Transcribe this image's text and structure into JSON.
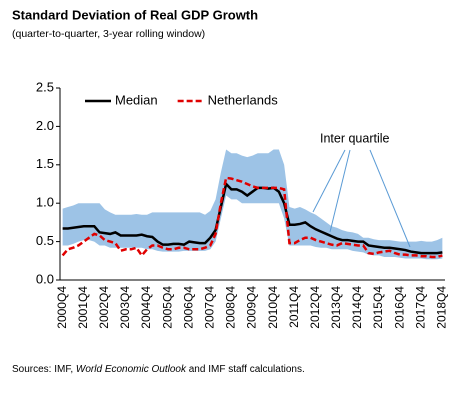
{
  "chart_data": {
    "type": "line",
    "title": "Standard Deviation of Real GDP Growth",
    "subtitle": "(quarter-to-quarter, 3-year rolling window)",
    "source": {
      "prefix": "Sources: IMF,",
      "italic": "World Economic Outlook",
      "suffix": "and IMF staff calculations."
    },
    "annotation": "Inter quartile",
    "legend": "upper left",
    "categories": [
      "2000Q4",
      null,
      null,
      null,
      "2001Q4",
      null,
      null,
      null,
      "2002Q4",
      null,
      null,
      null,
      "2003Q4",
      null,
      null,
      null,
      "2004Q4",
      null,
      null,
      null,
      "2005Q4",
      null,
      null,
      null,
      "2006Q4",
      null,
      null,
      null,
      "2007Q4",
      null,
      null,
      null,
      "2008Q4",
      null,
      null,
      null,
      "2009Q4",
      null,
      null,
      null,
      "2010Q4",
      null,
      null,
      null,
      "2011Q4",
      null,
      null,
      null,
      "2012Q4",
      null,
      null,
      null,
      "2013Q4",
      null,
      null,
      null,
      "2014Q4",
      null,
      null,
      null,
      "2015Q4",
      null,
      null,
      null,
      "2016Q4",
      null,
      null,
      null,
      "2017Q4",
      null,
      null,
      null,
      "2018Q4"
    ],
    "ylim": [
      0,
      2.5
    ],
    "yticks": [
      {
        "value": 0,
        "label": "0.0"
      },
      0.5,
      {
        "value": 1,
        "label": "1.0"
      },
      1.5,
      {
        "value": 2,
        "label": "2.0"
      },
      2.5
    ],
    "band": {
      "color": "#9dc3e6",
      "upper": [
        0.93,
        0.95,
        0.97,
        1.0,
        1.0,
        1.0,
        1.0,
        1.0,
        0.92,
        0.88,
        0.85,
        0.85,
        0.85,
        0.85,
        0.86,
        0.85,
        0.85,
        0.88,
        0.88,
        0.88,
        0.88,
        0.88,
        0.88,
        0.88,
        0.88,
        0.88,
        0.88,
        0.85,
        0.9,
        1.05,
        1.4,
        1.7,
        1.65,
        1.65,
        1.62,
        1.6,
        1.62,
        1.65,
        1.65,
        1.65,
        1.7,
        1.7,
        1.5,
        0.95,
        0.93,
        0.95,
        0.92,
        0.88,
        0.85,
        0.8,
        0.75,
        0.7,
        0.68,
        0.65,
        0.63,
        0.62,
        0.6,
        0.55,
        0.55,
        0.53,
        0.52,
        0.52,
        0.52,
        0.51,
        0.5,
        0.5,
        0.5,
        0.5,
        0.51,
        0.5,
        0.5,
        0.52,
        0.55
      ],
      "lower": [
        0.45,
        0.45,
        0.47,
        0.5,
        0.52,
        0.52,
        0.5,
        0.45,
        0.45,
        0.42,
        0.42,
        0.42,
        0.42,
        0.42,
        0.42,
        0.42,
        0.4,
        0.4,
        0.38,
        0.37,
        0.37,
        0.37,
        0.37,
        0.38,
        0.38,
        0.38,
        0.38,
        0.38,
        0.4,
        0.5,
        0.8,
        1.1,
        1.05,
        1.05,
        1.0,
        1.0,
        1.0,
        1.0,
        1.0,
        1.0,
        1.0,
        1.0,
        0.8,
        0.45,
        0.45,
        0.45,
        0.45,
        0.45,
        0.43,
        0.42,
        0.42,
        0.4,
        0.4,
        0.4,
        0.4,
        0.38,
        0.37,
        0.36,
        0.33,
        0.32,
        0.32,
        0.3,
        0.3,
        0.3,
        0.29,
        0.28,
        0.28,
        0.28,
        0.28,
        0.27,
        0.27,
        0.27,
        0.28
      ]
    },
    "series": [
      {
        "name": "Median",
        "color": "#000000",
        "dashed": false,
        "values": [
          0.67,
          0.67,
          0.68,
          0.69,
          0.7,
          0.7,
          0.7,
          0.62,
          0.61,
          0.6,
          0.62,
          0.58,
          0.58,
          0.58,
          0.58,
          0.59,
          0.57,
          0.56,
          0.5,
          0.46,
          0.46,
          0.47,
          0.47,
          0.46,
          0.5,
          0.49,
          0.48,
          0.48,
          0.55,
          0.65,
          0.95,
          1.25,
          1.18,
          1.18,
          1.15,
          1.1,
          1.15,
          1.2,
          1.2,
          1.19,
          1.2,
          1.15,
          1.0,
          0.72,
          0.72,
          0.73,
          0.75,
          0.7,
          0.66,
          0.63,
          0.6,
          0.57,
          0.54,
          0.52,
          0.52,
          0.51,
          0.5,
          0.5,
          0.45,
          0.44,
          0.43,
          0.42,
          0.42,
          0.41,
          0.4,
          0.39,
          0.37,
          0.36,
          0.35,
          0.35,
          0.35,
          0.35,
          0.36
        ]
      },
      {
        "name": "Netherlands",
        "color": "#e00000",
        "dashed": true,
        "values": [
          0.32,
          0.4,
          0.42,
          0.45,
          0.5,
          0.55,
          0.6,
          0.58,
          0.52,
          0.5,
          0.48,
          0.38,
          0.4,
          0.4,
          0.42,
          0.32,
          0.4,
          0.45,
          0.45,
          0.42,
          0.4,
          0.4,
          0.42,
          0.42,
          0.4,
          0.4,
          0.4,
          0.42,
          0.45,
          0.6,
          1.0,
          1.33,
          1.32,
          1.3,
          1.28,
          1.25,
          1.22,
          1.2,
          1.2,
          1.2,
          1.2,
          1.2,
          1.18,
          0.48,
          0.48,
          0.52,
          0.55,
          0.55,
          0.52,
          0.5,
          0.48,
          0.46,
          0.45,
          0.48,
          0.47,
          0.46,
          0.45,
          0.45,
          0.35,
          0.34,
          0.36,
          0.37,
          0.38,
          0.35,
          0.33,
          0.33,
          0.32,
          0.32,
          0.31,
          0.31,
          0.3,
          0.3,
          0.32
        ]
      }
    ]
  }
}
